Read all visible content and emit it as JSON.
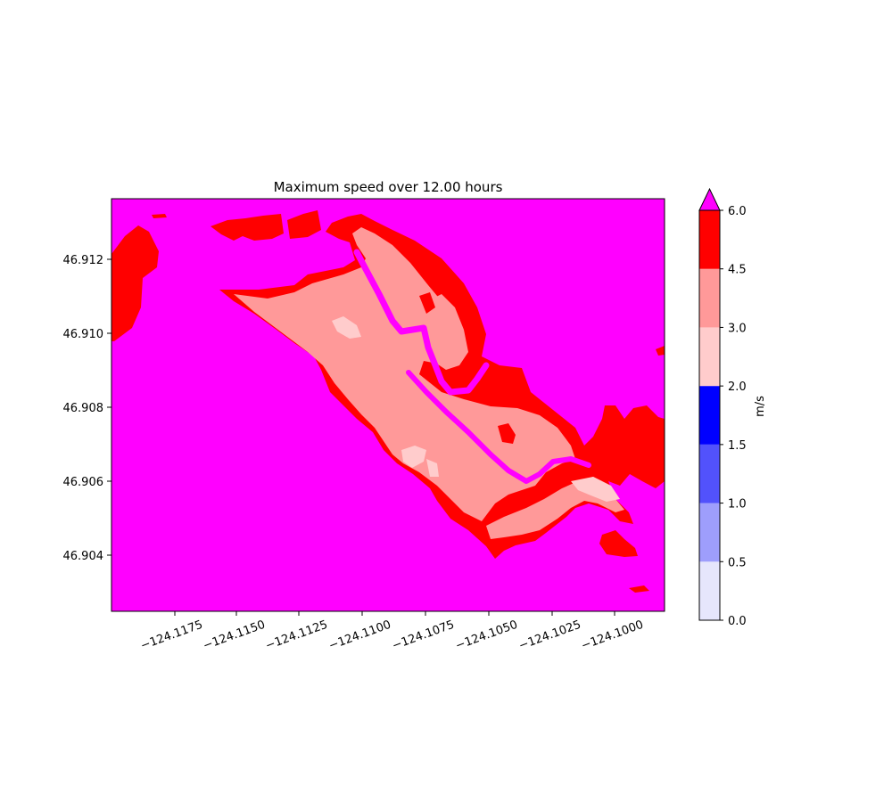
{
  "chart_data": {
    "type": "heatmap",
    "title": "Maximum speed over 12.00 hours",
    "xlabel": "",
    "ylabel": "",
    "xlim": [
      -124.1196,
      -124.0982
    ],
    "ylim": [
      46.9025,
      46.9136
    ],
    "x_ticks": [
      "−124.1175",
      "−124.1150",
      "−124.1125",
      "−124.1100",
      "−124.1075",
      "−124.1050",
      "−124.1025",
      "−124.1000"
    ],
    "x_tick_values": [
      -124.1175,
      -124.115,
      -124.1125,
      -124.11,
      -124.1075,
      -124.105,
      -124.1025,
      -124.1
    ],
    "y_ticks": [
      "46.904",
      "46.906",
      "46.908",
      "46.910",
      "46.912"
    ],
    "y_tick_values": [
      46.904,
      46.906,
      46.908,
      46.91,
      46.912
    ],
    "colorbar": {
      "label": "m/s",
      "extend": "max",
      "levels": [
        0.0,
        0.5,
        1.0,
        1.5,
        2.0,
        3.0,
        4.5,
        6.0
      ],
      "tick_labels": [
        "0.0",
        "0.5",
        "1.0",
        "1.5",
        "2.0",
        "3.0",
        "4.5",
        "6.0"
      ],
      "colors": [
        "#e6e6fc",
        "#9e9efc",
        "#5252fc",
        "#0000ff",
        "#ffcccc",
        "#ff9999",
        "#ff0000"
      ],
      "over_color": "#ff00ff"
    },
    "background_color": "#ff00ff",
    "regions": [
      {
        "name": "speed 4.5-6.0",
        "color": "#ff0000"
      },
      {
        "name": "speed 3.0-4.5",
        "color": "#ff9999"
      },
      {
        "name": "speed 2.0-3.0",
        "color": "#ffcccc"
      },
      {
        "name": "speed above 6.0",
        "color": "#ff00ff"
      }
    ]
  }
}
